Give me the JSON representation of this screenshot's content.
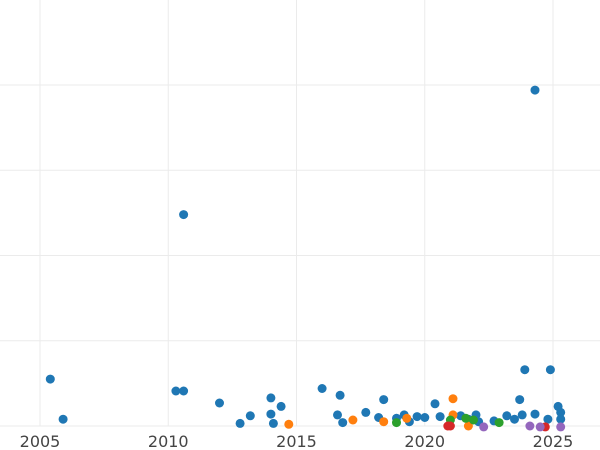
{
  "chart_data": {
    "type": "scatter",
    "title": "",
    "xlabel": "",
    "ylabel": "",
    "xlim": [
      2004.0,
      2026.8
    ],
    "ylim": [
      0,
      400
    ],
    "x_ticks": [
      2005,
      2010,
      2015,
      2020,
      2025
    ],
    "x_tick_labels": [
      "2005",
      "2010",
      "2015",
      "2020",
      "2025"
    ],
    "y_gridlines": [
      0,
      100,
      200,
      300,
      400
    ],
    "grid": true,
    "legend": "none",
    "series": [
      {
        "color": "#1f77b4",
        "points": [
          [
            2005.4,
            55
          ],
          [
            2005.9,
            8
          ],
          [
            2010.3,
            41
          ],
          [
            2010.6,
            41
          ],
          [
            2010.6,
            248
          ],
          [
            2012.0,
            27
          ],
          [
            2012.8,
            3
          ],
          [
            2013.2,
            12
          ],
          [
            2014.0,
            14
          ],
          [
            2014.0,
            33
          ],
          [
            2014.1,
            3
          ],
          [
            2014.4,
            23
          ],
          [
            2016.0,
            44
          ],
          [
            2016.6,
            13
          ],
          [
            2016.7,
            36
          ],
          [
            2016.8,
            4
          ],
          [
            2017.7,
            16
          ],
          [
            2018.2,
            10
          ],
          [
            2018.4,
            31
          ],
          [
            2018.9,
            9
          ],
          [
            2019.2,
            13
          ],
          [
            2019.4,
            5
          ],
          [
            2019.7,
            11
          ],
          [
            2020.0,
            10
          ],
          [
            2020.4,
            26
          ],
          [
            2020.6,
            11
          ],
          [
            2021.4,
            12
          ],
          [
            2021.7,
            8
          ],
          [
            2022.0,
            13
          ],
          [
            2022.1,
            5
          ],
          [
            2022.7,
            6
          ],
          [
            2023.2,
            12
          ],
          [
            2023.5,
            8
          ],
          [
            2023.7,
            31
          ],
          [
            2023.8,
            13
          ],
          [
            2023.9,
            66
          ],
          [
            2024.3,
            14
          ],
          [
            2024.3,
            394
          ],
          [
            2024.8,
            8
          ],
          [
            2024.9,
            66
          ],
          [
            2025.2,
            23
          ],
          [
            2025.3,
            16
          ],
          [
            2025.3,
            8
          ]
        ]
      },
      {
        "color": "#ff7f0e",
        "points": [
          [
            2014.7,
            2
          ],
          [
            2017.2,
            7
          ],
          [
            2018.4,
            5
          ],
          [
            2019.3,
            9
          ],
          [
            2021.1,
            13
          ],
          [
            2021.1,
            32
          ],
          [
            2021.7,
            0
          ]
        ]
      },
      {
        "color": "#2ca02c",
        "points": [
          [
            2018.9,
            4
          ],
          [
            2021.0,
            7
          ],
          [
            2021.6,
            9
          ],
          [
            2021.9,
            7
          ],
          [
            2022.9,
            4
          ]
        ]
      },
      {
        "color": "#d62728",
        "points": [
          [
            2020.9,
            0
          ],
          [
            2021.0,
            0
          ],
          [
            2024.7,
            -1
          ]
        ]
      },
      {
        "color": "#9467bd",
        "points": [
          [
            2022.3,
            -1
          ],
          [
            2024.1,
            0
          ],
          [
            2024.5,
            -1
          ],
          [
            2025.3,
            -1
          ]
        ]
      }
    ]
  }
}
